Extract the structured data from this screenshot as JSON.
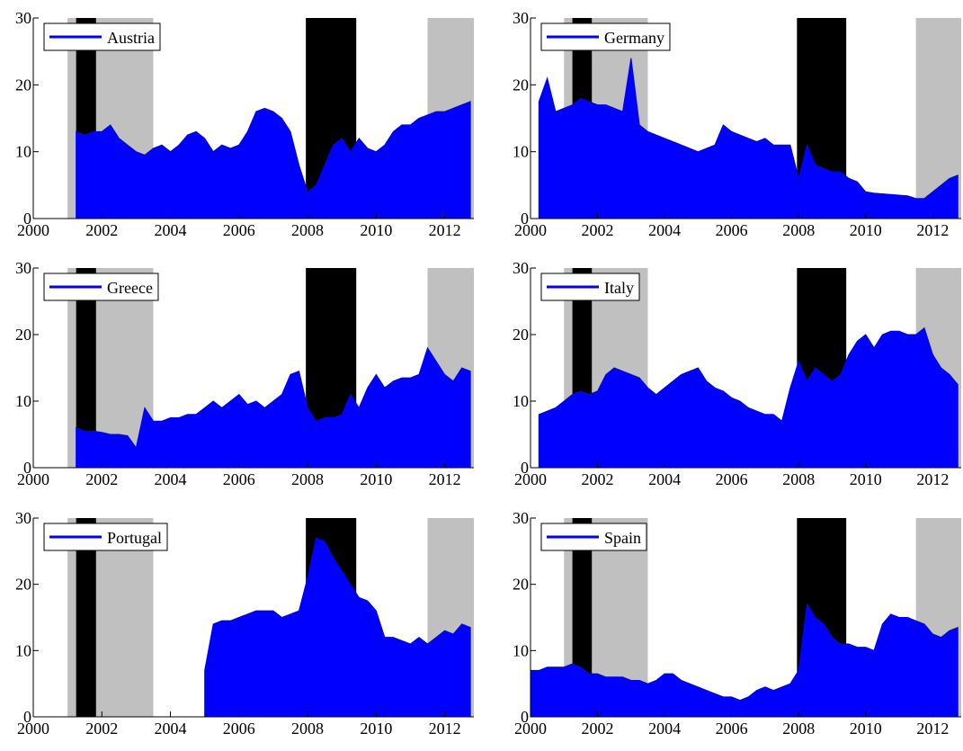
{
  "chart_data": [
    {
      "type": "area",
      "xlim": [
        2000,
        2012.85
      ],
      "ylim": [
        0,
        30
      ],
      "xticks": [
        2000,
        2002,
        2004,
        2006,
        2008,
        2010,
        2012
      ],
      "yticks": [
        0,
        10,
        20,
        30
      ],
      "bands": [
        {
          "start": 2001.0,
          "end": 2003.5,
          "color": "#c0c0c0"
        },
        {
          "start": 2011.5,
          "end": 2012.85,
          "color": "#c0c0c0"
        },
        {
          "start": 2001.25,
          "end": 2001.83,
          "color": "#000000"
        },
        {
          "start": 2007.95,
          "end": 2009.42,
          "color": "#000000"
        }
      ],
      "x": [
        2001.25,
        2001.5,
        2001.75,
        2002,
        2002.25,
        2002.5,
        2002.75,
        2003,
        2003.25,
        2003.5,
        2003.75,
        2004,
        2004.25,
        2004.5,
        2004.75,
        2005,
        2005.25,
        2005.5,
        2005.75,
        2006,
        2006.25,
        2006.5,
        2006.75,
        2007,
        2007.25,
        2007.5,
        2007.75,
        2008,
        2008.25,
        2008.5,
        2008.75,
        2009,
        2009.25,
        2009.5,
        2009.75,
        2010,
        2010.25,
        2010.5,
        2010.75,
        2011,
        2011.25,
        2011.5,
        2011.75,
        2012,
        2012.25,
        2012.5,
        2012.75
      ],
      "series": [
        {
          "name": "Austria",
          "color": "#0000ff",
          "values": [
            13,
            12.5,
            13,
            13,
            14,
            12,
            11,
            10,
            9.5,
            10.5,
            11,
            10,
            11,
            12.5,
            13,
            12,
            10,
            11,
            10.5,
            11,
            13,
            16,
            16.5,
            16,
            15,
            13,
            8,
            4,
            5,
            8,
            11,
            12,
            10,
            12,
            10.5,
            10,
            11,
            13,
            14,
            14,
            15,
            15.5,
            16,
            16,
            16.5,
            17,
            17.5
          ]
        }
      ]
    },
    {
      "type": "area",
      "xlim": [
        2000,
        2012.85
      ],
      "ylim": [
        0,
        30
      ],
      "xticks": [
        2000,
        2002,
        2004,
        2006,
        2008,
        2010,
        2012
      ],
      "yticks": [
        0,
        10,
        20,
        30
      ],
      "bands": [
        {
          "start": 2001.0,
          "end": 2003.5,
          "color": "#c0c0c0"
        },
        {
          "start": 2011.5,
          "end": 2012.85,
          "color": "#c0c0c0"
        },
        {
          "start": 2001.25,
          "end": 2001.83,
          "color": "#000000"
        },
        {
          "start": 2007.95,
          "end": 2009.42,
          "color": "#000000"
        }
      ],
      "x": [
        2000.25,
        2000.5,
        2000.75,
        2001,
        2001.25,
        2001.5,
        2001.75,
        2002,
        2002.25,
        2002.5,
        2002.75,
        2003,
        2003.25,
        2003.5,
        2003.75,
        2004,
        2004.25,
        2004.5,
        2004.75,
        2005,
        2005.25,
        2005.5,
        2005.75,
        2006,
        2006.25,
        2006.5,
        2006.75,
        2007,
        2007.25,
        2007.5,
        2007.75,
        2008,
        2008.25,
        2008.5,
        2008.75,
        2009,
        2009.25,
        2009.5,
        2009.75,
        2010,
        2010.25,
        2010.5,
        2010.75,
        2011,
        2011.25,
        2011.5,
        2011.75,
        2012,
        2012.25,
        2012.5,
        2012.75
      ],
      "series": [
        {
          "name": "Germany",
          "color": "#0000ff",
          "values": [
            17.5,
            21,
            16,
            16.5,
            17,
            18,
            17.5,
            17,
            17,
            16.5,
            16,
            24,
            14,
            13,
            12.5,
            12,
            11.5,
            11,
            10.5,
            10,
            10.5,
            11,
            14,
            13,
            12.5,
            12,
            11.5,
            12,
            11,
            11,
            11,
            6,
            11,
            8,
            7.5,
            7,
            7,
            6,
            5.5,
            4,
            3.8,
            3.7,
            3.6,
            3.5,
            3.4,
            3,
            3,
            4,
            5,
            6,
            6.5
          ]
        }
      ]
    },
    {
      "type": "area",
      "xlim": [
        2000,
        2012.85
      ],
      "ylim": [
        0,
        30
      ],
      "xticks": [
        2000,
        2002,
        2004,
        2006,
        2008,
        2010,
        2012
      ],
      "yticks": [
        0,
        10,
        20,
        30
      ],
      "bands": [
        {
          "start": 2001.0,
          "end": 2003.5,
          "color": "#c0c0c0"
        },
        {
          "start": 2011.5,
          "end": 2012.85,
          "color": "#c0c0c0"
        },
        {
          "start": 2001.25,
          "end": 2001.83,
          "color": "#000000"
        },
        {
          "start": 2007.95,
          "end": 2009.42,
          "color": "#000000"
        }
      ],
      "x": [
        2001.25,
        2001.5,
        2001.75,
        2002,
        2002.25,
        2002.5,
        2002.75,
        2003,
        2003.25,
        2003.5,
        2003.75,
        2004,
        2004.25,
        2004.5,
        2004.75,
        2005,
        2005.25,
        2005.5,
        2005.75,
        2006,
        2006.25,
        2006.5,
        2006.75,
        2007,
        2007.25,
        2007.5,
        2007.75,
        2008,
        2008.25,
        2008.5,
        2008.75,
        2009,
        2009.25,
        2009.5,
        2009.75,
        2010,
        2010.25,
        2010.5,
        2010.75,
        2011,
        2011.25,
        2011.5,
        2011.75,
        2012,
        2012.25,
        2012.5,
        2012.75
      ],
      "series": [
        {
          "name": "Greece",
          "color": "#0000ff",
          "values": [
            6,
            5.5,
            5.5,
            5.3,
            5,
            5,
            4.8,
            3,
            9,
            7,
            7,
            7.5,
            7.5,
            8,
            8,
            9,
            10,
            9,
            10,
            11,
            9.5,
            10,
            9,
            10,
            11,
            14,
            14.5,
            9,
            7,
            7.5,
            7.5,
            8,
            11,
            9,
            12,
            14,
            12,
            13,
            13.5,
            13.5,
            14,
            18,
            16,
            14,
            13,
            15,
            14.5
          ]
        }
      ]
    },
    {
      "type": "area",
      "xlim": [
        2000,
        2012.85
      ],
      "ylim": [
        0,
        30
      ],
      "xticks": [
        2000,
        2002,
        2004,
        2006,
        2008,
        2010,
        2012
      ],
      "yticks": [
        0,
        10,
        20,
        30
      ],
      "bands": [
        {
          "start": 2001.0,
          "end": 2003.5,
          "color": "#c0c0c0"
        },
        {
          "start": 2011.5,
          "end": 2012.85,
          "color": "#c0c0c0"
        },
        {
          "start": 2001.25,
          "end": 2001.83,
          "color": "#000000"
        },
        {
          "start": 2007.95,
          "end": 2009.42,
          "color": "#000000"
        }
      ],
      "x": [
        2000.25,
        2000.5,
        2000.75,
        2001,
        2001.25,
        2001.5,
        2001.75,
        2002,
        2002.25,
        2002.5,
        2002.75,
        2003,
        2003.25,
        2003.5,
        2003.75,
        2004,
        2004.25,
        2004.5,
        2004.75,
        2005,
        2005.25,
        2005.5,
        2005.75,
        2006,
        2006.25,
        2006.5,
        2006.75,
        2007,
        2007.25,
        2007.5,
        2007.75,
        2008,
        2008.25,
        2008.5,
        2008.75,
        2009,
        2009.25,
        2009.5,
        2009.75,
        2010,
        2010.25,
        2010.5,
        2010.75,
        2011,
        2011.25,
        2011.5,
        2011.75,
        2012,
        2012.25,
        2012.5,
        2012.75
      ],
      "series": [
        {
          "name": "Italy",
          "color": "#0000ff",
          "values": [
            8,
            8.5,
            9,
            10,
            11,
            11.5,
            11,
            11.5,
            14,
            15,
            14.5,
            14,
            13.5,
            12,
            11,
            12,
            13,
            14,
            14.5,
            15,
            13,
            12,
            11.5,
            10.5,
            10,
            9,
            8.5,
            8,
            8,
            7,
            12,
            16,
            13,
            15,
            14,
            13,
            14,
            17,
            19,
            20,
            18,
            20,
            20.5,
            20.5,
            20,
            20,
            21,
            17,
            15,
            14,
            12.5
          ]
        }
      ]
    },
    {
      "type": "area",
      "xlim": [
        2000,
        2012.85
      ],
      "ylim": [
        0,
        30
      ],
      "xticks": [
        2000,
        2002,
        2004,
        2006,
        2008,
        2010,
        2012
      ],
      "yticks": [
        0,
        10,
        20,
        30
      ],
      "bands": [
        {
          "start": 2001.0,
          "end": 2003.5,
          "color": "#c0c0c0"
        },
        {
          "start": 2011.5,
          "end": 2012.85,
          "color": "#c0c0c0"
        },
        {
          "start": 2001.25,
          "end": 2001.83,
          "color": "#000000"
        },
        {
          "start": 2007.95,
          "end": 2009.42,
          "color": "#000000"
        }
      ],
      "x": [
        2005,
        2005.25,
        2005.5,
        2005.75,
        2006,
        2006.25,
        2006.5,
        2006.75,
        2007,
        2007.25,
        2007.5,
        2007.75,
        2008,
        2008.25,
        2008.5,
        2008.75,
        2009,
        2009.25,
        2009.5,
        2009.75,
        2010,
        2010.25,
        2010.5,
        2010.75,
        2011,
        2011.25,
        2011.5,
        2011.75,
        2012,
        2012.25,
        2012.5,
        2012.75
      ],
      "series": [
        {
          "name": "Portugal",
          "color": "#0000ff",
          "values": [
            7,
            14,
            14.5,
            14.5,
            15,
            15.5,
            16,
            16,
            16,
            15,
            15.5,
            16,
            21,
            27,
            26.5,
            24,
            22,
            20,
            18,
            17.5,
            16,
            12,
            12,
            11.5,
            11,
            12,
            11,
            12,
            13,
            12.5,
            14,
            13.5
          ]
        }
      ]
    },
    {
      "type": "area",
      "xlim": [
        2000,
        2012.85
      ],
      "ylim": [
        0,
        30
      ],
      "xticks": [
        2000,
        2002,
        2004,
        2006,
        2008,
        2010,
        2012
      ],
      "yticks": [
        0,
        10,
        20,
        30
      ],
      "bands": [
        {
          "start": 2001.0,
          "end": 2003.5,
          "color": "#c0c0c0"
        },
        {
          "start": 2011.5,
          "end": 2012.85,
          "color": "#c0c0c0"
        },
        {
          "start": 2001.25,
          "end": 2001.83,
          "color": "#000000"
        },
        {
          "start": 2007.95,
          "end": 2009.42,
          "color": "#000000"
        }
      ],
      "x": [
        2000,
        2000.25,
        2000.5,
        2000.75,
        2001,
        2001.25,
        2001.5,
        2001.75,
        2002,
        2002.25,
        2002.5,
        2002.75,
        2003,
        2003.25,
        2003.5,
        2003.75,
        2004,
        2004.25,
        2004.5,
        2004.75,
        2005,
        2005.25,
        2005.5,
        2005.75,
        2006,
        2006.25,
        2006.5,
        2006.75,
        2007,
        2007.25,
        2007.5,
        2007.75,
        2008,
        2008.25,
        2008.5,
        2008.75,
        2009,
        2009.25,
        2009.5,
        2009.75,
        2010,
        2010.25,
        2010.5,
        2010.75,
        2011,
        2011.25,
        2011.5,
        2011.75,
        2012,
        2012.25,
        2012.5,
        2012.75
      ],
      "series": [
        {
          "name": "Spain",
          "color": "#0000ff",
          "values": [
            7,
            7,
            7.5,
            7.5,
            7.5,
            8,
            7.5,
            6.5,
            6.5,
            6,
            6,
            6,
            5.5,
            5.5,
            5,
            5.5,
            6.5,
            6.5,
            5.5,
            5,
            4.5,
            4,
            3.5,
            3,
            3,
            2.5,
            3,
            4,
            4.5,
            4,
            4.5,
            5,
            7,
            17,
            15,
            14,
            12,
            11,
            11,
            10.5,
            10.5,
            10,
            14,
            15.5,
            15,
            15,
            14.5,
            14,
            12.5,
            12,
            13,
            13.5
          ]
        }
      ]
    }
  ]
}
